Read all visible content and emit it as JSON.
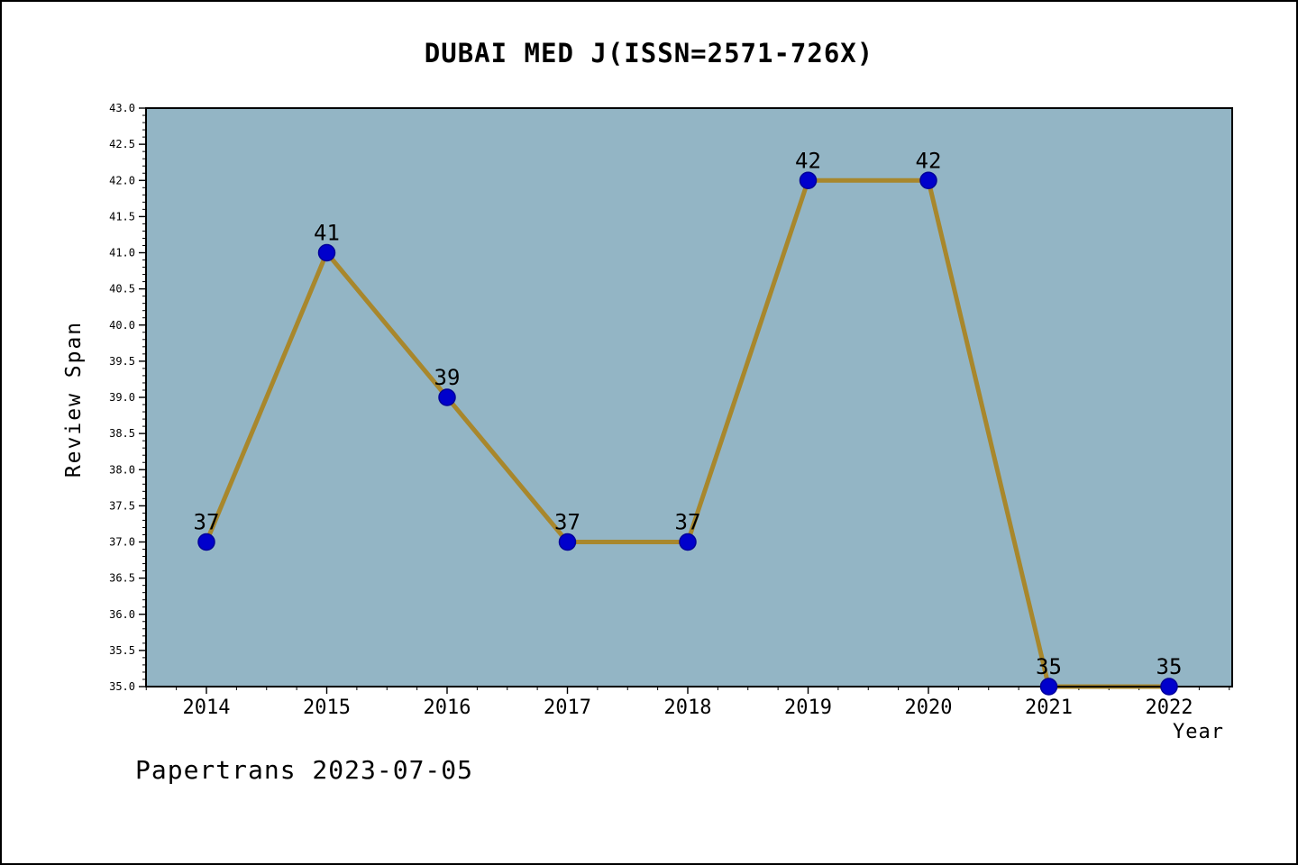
{
  "footer": {
    "text": "Papertrans 2023-07-05"
  },
  "chart_data": {
    "type": "line",
    "title": "DUBAI MED J(ISSN=2571-726X)",
    "xlabel": "Year",
    "ylabel": "Review Span",
    "x": [
      2014,
      2015,
      2016,
      2017,
      2018,
      2019,
      2020,
      2021,
      2022
    ],
    "values": [
      37,
      41,
      39,
      37,
      37,
      42,
      42,
      35,
      35
    ],
    "ylim": [
      35.0,
      43.0
    ],
    "ytick_major_step": 0.5,
    "ytick_minor_step": 0.1,
    "xtick_minor_step": 0.25,
    "grid": false,
    "legend": null,
    "colors": {
      "plot_background": "#93b5c5",
      "line": "#a8872c",
      "marker_fill": "#0000cc",
      "marker_edge": "#000099",
      "axis": "#000000",
      "text": "#000000"
    }
  }
}
